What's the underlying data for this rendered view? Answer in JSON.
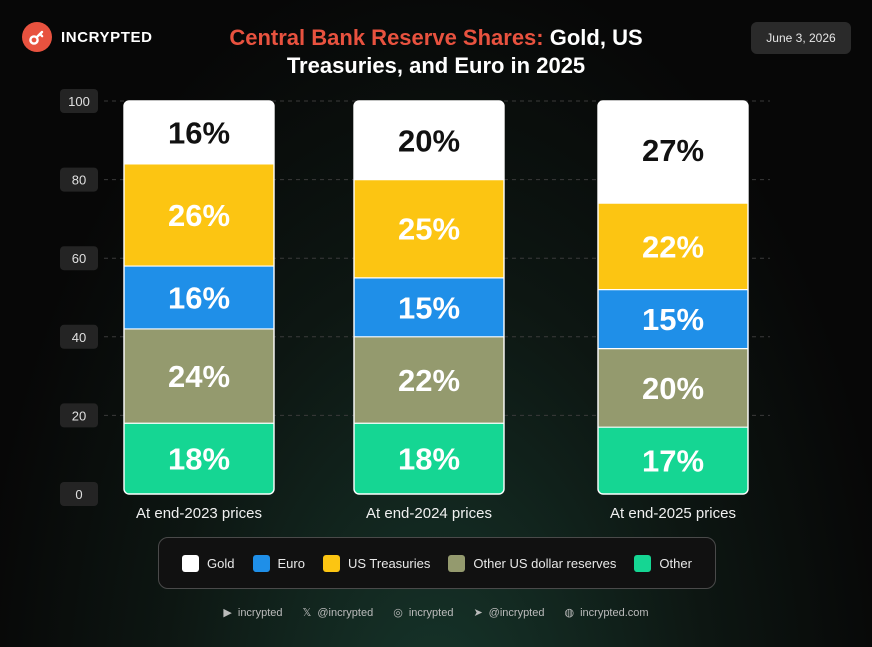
{
  "brand": {
    "name": "INCRYPTED"
  },
  "header": {
    "title_accent": "Central Bank Reserve Shares:",
    "title_rest": "Gold, US Treasuries, and Euro in 2025",
    "date": "June 3, 2026"
  },
  "colors": {
    "accent": "#e8523f",
    "gold": "#ffffff",
    "us_treasuries": "#fcc512",
    "euro": "#1f8fe8",
    "other_usd": "#949a6e",
    "other": "#15d693"
  },
  "chart_data": {
    "type": "bar",
    "stacked": true,
    "categories": [
      "At end-2023 prices",
      "At end-2024 prices",
      "At end-2025 prices"
    ],
    "ylim": [
      0,
      100
    ],
    "yticks": [
      0,
      20,
      40,
      60,
      80,
      100
    ],
    "grid": true,
    "legend_position": "bottom",
    "series": [
      {
        "name": "Other",
        "values": [
          18,
          18,
          17
        ],
        "labels": [
          "18%",
          "18%",
          "17%"
        ],
        "color": "#15d693"
      },
      {
        "name": "Other US dollar reserves",
        "values": [
          24,
          22,
          20
        ],
        "labels": [
          "24%",
          "22%",
          "20%"
        ],
        "color": "#949a6e"
      },
      {
        "name": "Euro",
        "values": [
          16,
          15,
          15
        ],
        "labels": [
          "16%",
          "15%",
          "15%"
        ],
        "color": "#1f8fe8"
      },
      {
        "name": "US Treasuries",
        "values": [
          26,
          25,
          22
        ],
        "labels": [
          "26%",
          "25%",
          "22%"
        ],
        "color": "#fcc512"
      },
      {
        "name": "Gold",
        "values": [
          16,
          20,
          27
        ],
        "labels": [
          "16%",
          "20%",
          "27%"
        ],
        "color": "#ffffff"
      }
    ]
  },
  "legend": [
    {
      "label": "Gold",
      "color": "#ffffff"
    },
    {
      "label": "Euro",
      "color": "#1f8fe8"
    },
    {
      "label": "US Treasuries",
      "color": "#fcc512"
    },
    {
      "label": "Other US dollar reserves",
      "color": "#949a6e"
    },
    {
      "label": "Other",
      "color": "#15d693"
    }
  ],
  "footer": [
    {
      "icon": "youtube-icon",
      "text": "incrypted"
    },
    {
      "icon": "x-icon",
      "text": "@incrypted"
    },
    {
      "icon": "instagram-icon",
      "text": "incrypted"
    },
    {
      "icon": "telegram-icon",
      "text": "@incrypted"
    },
    {
      "icon": "globe-icon",
      "text": "incrypted.com"
    }
  ]
}
